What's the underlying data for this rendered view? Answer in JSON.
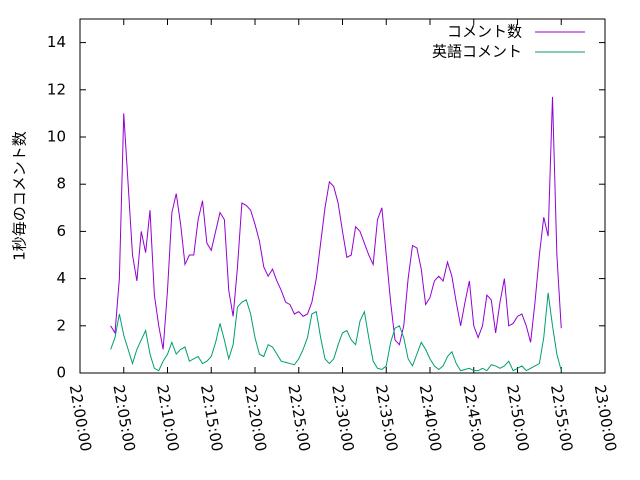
{
  "chart_data": {
    "type": "line",
    "ylabel": "1秒毎のコメント数",
    "x": [
      "22:03:30",
      "22:04:00",
      "22:04:30",
      "22:05:00",
      "22:05:30",
      "22:06:00",
      "22:06:30",
      "22:07:00",
      "22:07:30",
      "22:08:00",
      "22:08:30",
      "22:09:00",
      "22:09:30",
      "22:10:00",
      "22:10:30",
      "22:11:00",
      "22:11:30",
      "22:12:00",
      "22:12:30",
      "22:13:00",
      "22:13:30",
      "22:14:00",
      "22:14:30",
      "22:15:00",
      "22:15:30",
      "22:16:00",
      "22:16:30",
      "22:17:00",
      "22:17:30",
      "22:18:00",
      "22:18:30",
      "22:19:00",
      "22:19:30",
      "22:20:00",
      "22:20:30",
      "22:21:00",
      "22:21:30",
      "22:22:00",
      "22:22:30",
      "22:23:00",
      "22:23:30",
      "22:24:00",
      "22:24:30",
      "22:25:00",
      "22:25:30",
      "22:26:00",
      "22:26:30",
      "22:27:00",
      "22:27:30",
      "22:28:00",
      "22:28:30",
      "22:29:00",
      "22:29:30",
      "22:30:00",
      "22:30:30",
      "22:31:00",
      "22:31:30",
      "22:32:00",
      "22:32:30",
      "22:33:00",
      "22:33:30",
      "22:34:00",
      "22:34:30",
      "22:35:00",
      "22:35:30",
      "22:36:00",
      "22:36:30",
      "22:37:00",
      "22:37:30",
      "22:38:00",
      "22:38:30",
      "22:39:00",
      "22:39:30",
      "22:40:00",
      "22:40:30",
      "22:41:00",
      "22:41:30",
      "22:42:00",
      "22:42:30",
      "22:43:00",
      "22:43:30",
      "22:44:00",
      "22:44:30",
      "22:45:00",
      "22:45:30",
      "22:46:00",
      "22:46:30",
      "22:47:00",
      "22:47:30",
      "22:48:00",
      "22:48:30",
      "22:49:00",
      "22:49:30",
      "22:50:00",
      "22:50:30",
      "22:51:00",
      "22:51:30",
      "22:52:00",
      "22:52:30",
      "22:53:00",
      "22:53:30",
      "22:54:00",
      "22:54:30",
      "22:55:00"
    ],
    "series": [
      {
        "name": "コメント数",
        "color": "#9400d3",
        "values": [
          2.0,
          1.7,
          4,
          11.0,
          8,
          5,
          3.9,
          6.0,
          5.1,
          6.9,
          3.3,
          2.0,
          1.0,
          3.5,
          6.8,
          7.6,
          6.3,
          4.6,
          5.0,
          5.0,
          6.5,
          7.3,
          5.5,
          5.2,
          6.0,
          6.8,
          6.5,
          3.5,
          2.4,
          4.5,
          7.2,
          7.1,
          6.9,
          6.3,
          5.6,
          4.5,
          4.1,
          4.4,
          3.9,
          3.5,
          3.0,
          2.9,
          2.5,
          2.6,
          2.4,
          2.5,
          3.0,
          4.0,
          5.5,
          7.0,
          8.1,
          7.9,
          7.2,
          6.0,
          4.9,
          5.0,
          6.2,
          6.0,
          5.5,
          5.0,
          4.6,
          6.5,
          7.0,
          5.0,
          3.0,
          1.4,
          1.2,
          2.0,
          4.0,
          5.4,
          5.3,
          4.4,
          2.9,
          3.2,
          3.9,
          4.1,
          3.9,
          4.7,
          4.1,
          3.0,
          2.0,
          3.0,
          3.9,
          2.0,
          1.5,
          2.0,
          3.3,
          3.1,
          1.7,
          3.0,
          4.0,
          2.0,
          2.1,
          2.4,
          2.5,
          2.0,
          1.3,
          3.0,
          5.0,
          6.6,
          5.8,
          11.7,
          5.0,
          1.9
        ]
      },
      {
        "name": "英語コメント",
        "color": "#009e73",
        "values": [
          1.0,
          1.5,
          2.5,
          1.6,
          1.0,
          0.4,
          1.0,
          1.4,
          1.8,
          0.8,
          0.2,
          0.1,
          0.5,
          0.8,
          1.3,
          0.8,
          1.0,
          1.1,
          0.5,
          0.6,
          0.7,
          0.4,
          0.5,
          0.7,
          1.3,
          2.1,
          1.4,
          0.6,
          1.2,
          2.8,
          3.0,
          3.1,
          2.5,
          1.5,
          0.8,
          0.7,
          1.2,
          1.1,
          0.8,
          0.5,
          0.45,
          0.4,
          0.35,
          0.6,
          1.0,
          1.5,
          2.5,
          2.6,
          1.5,
          0.6,
          0.4,
          0.6,
          1.2,
          1.7,
          1.8,
          1.4,
          1.2,
          2.2,
          2.6,
          1.5,
          0.5,
          0.2,
          0.15,
          0.3,
          1.3,
          1.9,
          2.0,
          1.5,
          0.6,
          0.3,
          0.8,
          1.3,
          1.0,
          0.6,
          0.3,
          0.15,
          0.3,
          0.7,
          0.9,
          0.4,
          0.1,
          0.15,
          0.2,
          0.1,
          0.1,
          0.2,
          0.1,
          0.35,
          0.3,
          0.2,
          0.3,
          0.5,
          0.1,
          0.2,
          0.3,
          0.1,
          0.2,
          0.3,
          0.4,
          1.5,
          3.4,
          2.0,
          0.8,
          0.1
        ]
      }
    ],
    "xlim": [
      "22:00:00",
      "23:00:00"
    ],
    "xticks": [
      "22:00:00",
      "22:05:00",
      "22:10:00",
      "22:15:00",
      "22:20:00",
      "22:25:00",
      "22:30:00",
      "22:35:00",
      "22:40:00",
      "22:45:00",
      "22:50:00",
      "22:55:00",
      "23:00:00"
    ],
    "ylim": [
      0,
      15
    ],
    "yticks": [
      0,
      2,
      4,
      6,
      8,
      10,
      12,
      14
    ],
    "legend": "top-right"
  }
}
